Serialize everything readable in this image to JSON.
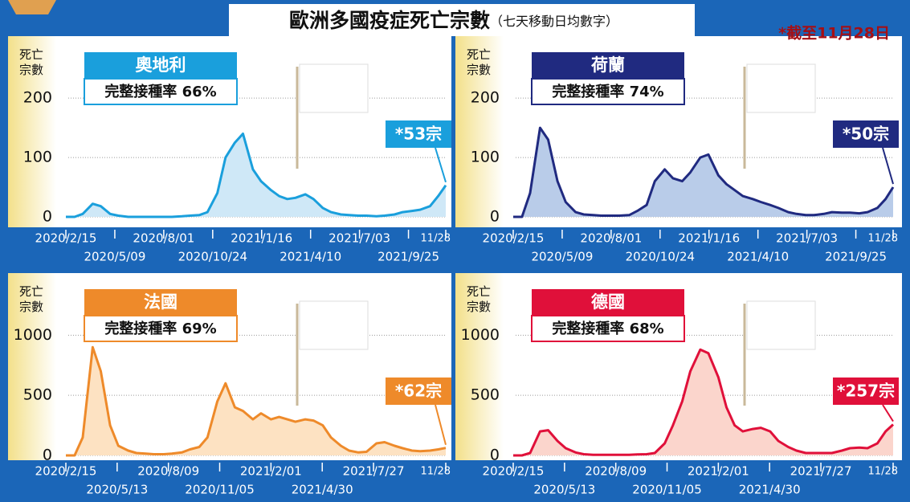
{
  "title": "歐洲多國疫症死亡宗數",
  "subtitle": "（七天移動日均數字）",
  "note": "*截至11月28日",
  "chart_data": [
    {
      "type": "line",
      "title": "奧地利",
      "subtitle": "完整接種率 66%",
      "annotation": "*53宗",
      "y_label": "死亡宗數",
      "color": "#1a9fdc",
      "fill_color": "#cfe8f7",
      "x": [
        "2020-02-15",
        "2020-03-01",
        "2020-03-15",
        "2020-04-01",
        "2020-04-15",
        "2020-05-01",
        "2020-05-15",
        "2020-06-01",
        "2020-06-15",
        "2020-07-01",
        "2020-07-15",
        "2020-08-01",
        "2020-08-15",
        "2020-09-01",
        "2020-09-15",
        "2020-10-01",
        "2020-10-15",
        "2020-11-01",
        "2020-11-15",
        "2020-12-01",
        "2020-12-15",
        "2021-01-01",
        "2021-01-15",
        "2021-02-01",
        "2021-02-15",
        "2021-03-01",
        "2021-03-15",
        "2021-04-01",
        "2021-04-15",
        "2021-05-01",
        "2021-05-15",
        "2021-06-01",
        "2021-06-15",
        "2021-07-01",
        "2021-07-15",
        "2021-08-01",
        "2021-08-15",
        "2021-09-01",
        "2021-09-15",
        "2021-10-01",
        "2021-10-15",
        "2021-11-01",
        "2021-11-15",
        "2021-11-28"
      ],
      "values": [
        0,
        0,
        5,
        22,
        18,
        5,
        2,
        0,
        0,
        0,
        0,
        0,
        0,
        1,
        2,
        3,
        8,
        40,
        100,
        125,
        140,
        80,
        60,
        45,
        35,
        30,
        32,
        38,
        30,
        15,
        8,
        4,
        3,
        2,
        2,
        1,
        2,
        4,
        8,
        10,
        12,
        18,
        35,
        53
      ],
      "xlim": [
        "2020-02-15",
        "2021-11-28"
      ],
      "xticks": [
        {
          "value": "2020-02-15",
          "label": "2020/2/15"
        },
        {
          "value": "2020-05-09",
          "label": "2020/5/09"
        },
        {
          "value": "2020-08-01",
          "label": "2020/8/01"
        },
        {
          "value": "2020-10-24",
          "label": "2020/10/24"
        },
        {
          "value": "2021-01-16",
          "label": "2021/1/16"
        },
        {
          "value": "2021-04-10",
          "label": "2021/4/10"
        },
        {
          "value": "2021-07-03",
          "label": "2021/7/03"
        },
        {
          "value": "2021-09-25",
          "label": "2021/9/25"
        },
        {
          "value": "2021-11-28",
          "label": "11/28"
        }
      ],
      "ylim": [
        0,
        280
      ],
      "yticks": [
        0,
        100,
        200
      ],
      "grid": true
    },
    {
      "type": "line",
      "title": "荷蘭",
      "subtitle": "完整接種率 74%",
      "annotation": "*50宗",
      "y_label": "死亡宗數",
      "color": "#202a80",
      "fill_color": "#b9cce9",
      "x": [
        "2020-02-15",
        "2020-03-01",
        "2020-03-15",
        "2020-04-01",
        "2020-04-15",
        "2020-05-01",
        "2020-05-15",
        "2020-06-01",
        "2020-06-15",
        "2020-07-01",
        "2020-07-15",
        "2020-08-01",
        "2020-08-15",
        "2020-09-01",
        "2020-09-15",
        "2020-10-01",
        "2020-10-15",
        "2020-11-01",
        "2020-11-15",
        "2020-12-01",
        "2020-12-15",
        "2021-01-01",
        "2021-01-15",
        "2021-02-01",
        "2021-02-15",
        "2021-03-01",
        "2021-03-15",
        "2021-04-01",
        "2021-04-15",
        "2021-05-01",
        "2021-05-15",
        "2021-06-01",
        "2021-06-15",
        "2021-07-01",
        "2021-07-15",
        "2021-08-01",
        "2021-08-15",
        "2021-09-01",
        "2021-09-15",
        "2021-10-01",
        "2021-10-15",
        "2021-11-01",
        "2021-11-15",
        "2021-11-28"
      ],
      "values": [
        0,
        0,
        40,
        150,
        130,
        60,
        25,
        8,
        4,
        3,
        2,
        2,
        2,
        3,
        10,
        20,
        60,
        80,
        65,
        60,
        75,
        100,
        105,
        70,
        55,
        45,
        35,
        30,
        25,
        20,
        15,
        8,
        5,
        3,
        3,
        5,
        8,
        7,
        7,
        6,
        8,
        15,
        30,
        50
      ],
      "xlim": [
        "2020-02-15",
        "2021-11-28"
      ],
      "xticks": [
        {
          "value": "2020-02-15",
          "label": "2020/2/15"
        },
        {
          "value": "2020-05-09",
          "label": "2020/5/09"
        },
        {
          "value": "2020-08-01",
          "label": "2020/8/01"
        },
        {
          "value": "2020-10-24",
          "label": "2020/10/24"
        },
        {
          "value": "2021-01-16",
          "label": "2021/1/16"
        },
        {
          "value": "2021-04-10",
          "label": "2021/4/10"
        },
        {
          "value": "2021-07-03",
          "label": "2021/7/03"
        },
        {
          "value": "2021-09-25",
          "label": "2021/9/25"
        },
        {
          "value": "2021-11-28",
          "label": "11/28"
        }
      ],
      "ylim": [
        0,
        280
      ],
      "yticks": [
        0,
        100,
        200
      ],
      "grid": true
    },
    {
      "type": "line",
      "title": "法國",
      "subtitle": "完整接種率 69%",
      "annotation": "*62宗",
      "y_label": "死亡宗數",
      "color": "#ee8a2a",
      "fill_color": "#fde2c2",
      "x": [
        "2020-02-15",
        "2020-03-01",
        "2020-03-15",
        "2020-04-01",
        "2020-04-15",
        "2020-05-01",
        "2020-05-15",
        "2020-06-01",
        "2020-06-15",
        "2020-07-01",
        "2020-07-15",
        "2020-08-01",
        "2020-08-15",
        "2020-09-01",
        "2020-09-15",
        "2020-10-01",
        "2020-10-15",
        "2020-11-01",
        "2020-11-15",
        "2020-12-01",
        "2020-12-15",
        "2021-01-01",
        "2021-01-15",
        "2021-02-01",
        "2021-02-15",
        "2021-03-01",
        "2021-03-15",
        "2021-04-01",
        "2021-04-15",
        "2021-05-01",
        "2021-05-15",
        "2021-06-01",
        "2021-06-15",
        "2021-07-01",
        "2021-07-15",
        "2021-08-01",
        "2021-08-15",
        "2021-09-01",
        "2021-09-15",
        "2021-10-01",
        "2021-10-15",
        "2021-11-01",
        "2021-11-15",
        "2021-11-28"
      ],
      "values": [
        0,
        0,
        150,
        900,
        700,
        250,
        80,
        40,
        20,
        15,
        10,
        10,
        15,
        25,
        50,
        70,
        150,
        450,
        600,
        400,
        370,
        300,
        350,
        300,
        320,
        300,
        280,
        300,
        290,
        250,
        150,
        80,
        40,
        25,
        30,
        100,
        110,
        80,
        60,
        40,
        35,
        40,
        50,
        62
      ],
      "xlim": [
        "2020-02-15",
        "2021-11-28"
      ],
      "xticks": [
        {
          "value": "2020-02-15",
          "label": "2020/2/15"
        },
        {
          "value": "2020-05-13",
          "label": "2020/5/13"
        },
        {
          "value": "2020-08-09",
          "label": "2020/8/09"
        },
        {
          "value": "2020-11-05",
          "label": "2020/11/05"
        },
        {
          "value": "2021-02-01",
          "label": "2021/2/01"
        },
        {
          "value": "2021-04-30",
          "label": "2021/4/30"
        },
        {
          "value": "2021-07-27",
          "label": "2021/7/27"
        },
        {
          "value": "2021-11-28",
          "label": "11/28"
        }
      ],
      "ylim": [
        0,
        1450
      ],
      "yticks": [
        0,
        500,
        1000
      ],
      "grid": true
    },
    {
      "type": "line",
      "title": "德國",
      "subtitle": "完整接種率 68%",
      "annotation": "*257宗",
      "y_label": "死亡宗數",
      "color": "#e0103a",
      "fill_color": "#fbd5cc",
      "x": [
        "2020-02-15",
        "2020-03-01",
        "2020-03-15",
        "2020-04-01",
        "2020-04-15",
        "2020-05-01",
        "2020-05-15",
        "2020-06-01",
        "2020-06-15",
        "2020-07-01",
        "2020-07-15",
        "2020-08-01",
        "2020-08-15",
        "2020-09-01",
        "2020-09-15",
        "2020-10-01",
        "2020-10-15",
        "2020-11-01",
        "2020-11-15",
        "2020-12-01",
        "2020-12-15",
        "2021-01-01",
        "2021-01-15",
        "2021-02-01",
        "2021-02-15",
        "2021-03-01",
        "2021-03-15",
        "2021-04-01",
        "2021-04-15",
        "2021-05-01",
        "2021-05-15",
        "2021-06-01",
        "2021-06-15",
        "2021-07-01",
        "2021-07-15",
        "2021-08-01",
        "2021-08-15",
        "2021-09-01",
        "2021-09-15",
        "2021-10-01",
        "2021-10-15",
        "2021-11-01",
        "2021-11-15",
        "2021-11-28"
      ],
      "values": [
        0,
        0,
        20,
        200,
        210,
        120,
        60,
        25,
        10,
        5,
        5,
        5,
        5,
        5,
        8,
        10,
        20,
        100,
        250,
        450,
        700,
        880,
        850,
        650,
        400,
        250,
        200,
        220,
        230,
        200,
        120,
        70,
        40,
        20,
        20,
        20,
        20,
        40,
        60,
        65,
        60,
        100,
        200,
        257
      ],
      "xlim": [
        "2020-02-15",
        "2021-11-28"
      ],
      "xticks": [
        {
          "value": "2020-02-15",
          "label": "2020/2/15"
        },
        {
          "value": "2020-05-13",
          "label": "2020/5/13"
        },
        {
          "value": "2020-08-09",
          "label": "2020/8/09"
        },
        {
          "value": "2020-11-05",
          "label": "2020/11/05"
        },
        {
          "value": "2021-02-01",
          "label": "2021/2/01"
        },
        {
          "value": "2021-04-30",
          "label": "2021/4/30"
        },
        {
          "value": "2021-07-27",
          "label": "2021/7/27"
        },
        {
          "value": "2021-11-28",
          "label": "11/28"
        }
      ],
      "ylim": [
        0,
        1450
      ],
      "yticks": [
        0,
        500,
        1000
      ],
      "grid": true
    }
  ]
}
